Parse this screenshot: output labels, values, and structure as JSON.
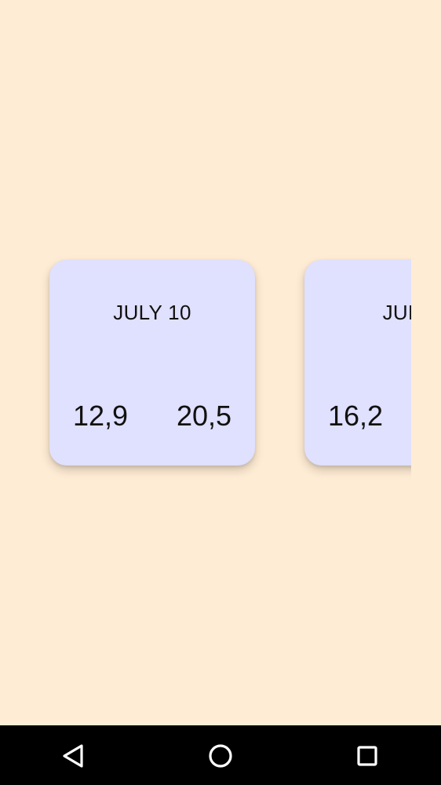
{
  "cards": [
    {
      "date": "JULY 10",
      "min": "12,9",
      "max": "20,5"
    },
    {
      "date": "JULY",
      "min": "16,2",
      "max": ""
    }
  ],
  "navbar": {
    "back_icon": "back-triangle-icon",
    "home_icon": "home-circle-icon",
    "recent_icon": "recent-apps-square-icon"
  },
  "colors": {
    "background": "#FFECD4",
    "card": "#E0E0FF",
    "navbar": "#000000"
  }
}
